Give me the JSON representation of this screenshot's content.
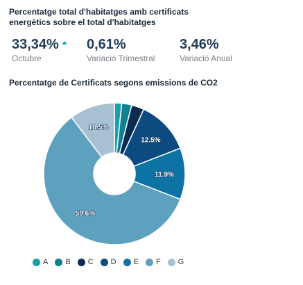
{
  "header": {
    "title": "Percentatge total d'habitatges amb certificats energètics sobre el total d'habitatges"
  },
  "kpis": [
    {
      "value": "33,34%",
      "label": "Octubre",
      "trend": "up"
    },
    {
      "value": "0,61%",
      "label": "Variació Trimestral"
    },
    {
      "value": "3,46%",
      "label": "Variació Anual"
    }
  ],
  "chart_data": {
    "type": "pie",
    "title": "Percentatge de Certificats segons emissions de CO2",
    "categories": [
      "A",
      "B",
      "C",
      "D",
      "E",
      "F",
      "G"
    ],
    "values": [
      1.7,
      2.3,
      2.9,
      12.5,
      11.9,
      59.6,
      10.5
    ],
    "data_labels": [
      "",
      "",
      "",
      "12.5%",
      "11.9%",
      "59.6%",
      "10.5%"
    ],
    "colors": [
      "#17a3ad",
      "#137f93",
      "#0b2b52",
      "#0d4a80",
      "#0d73a4",
      "#5ea1bf",
      "#a7c1d3"
    ],
    "donut": true,
    "legend_position": "bottom"
  }
}
